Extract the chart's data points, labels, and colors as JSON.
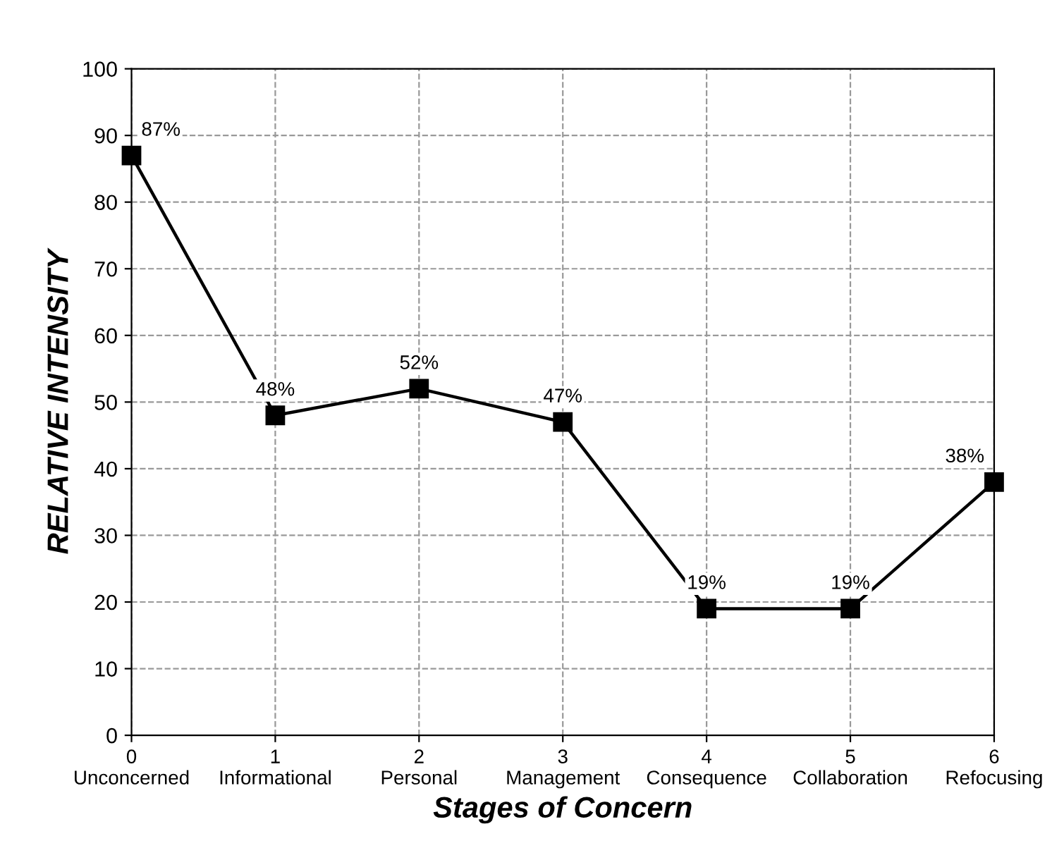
{
  "chart_data": {
    "type": "line",
    "xlabel": "Stages of Concern",
    "ylabel": "RELATIVE INTENSITY",
    "x": [
      0,
      1,
      2,
      3,
      4,
      5,
      6
    ],
    "series": [
      {
        "color": "#000000",
        "values": [
          87,
          48,
          52,
          47,
          19,
          19,
          38
        ],
        "value_labels": [
          "87%",
          "48%",
          "52%",
          "47%",
          "19%",
          "19%",
          "38%"
        ]
      }
    ],
    "xlim": [
      0,
      6
    ],
    "xticks": [
      {
        "value": 0,
        "label": "0\nUnconcerned"
      },
      {
        "value": 1,
        "label": "1\nInformational"
      },
      {
        "value": 2,
        "label": "2\nPersonal"
      },
      {
        "value": 3,
        "label": "3\nManagement"
      },
      {
        "value": 4,
        "label": "4\nConsequence"
      },
      {
        "value": 5,
        "label": "5\nCollaboration"
      },
      {
        "value": 6,
        "label": "6\nRefocusing"
      }
    ],
    "ylim": [
      0,
      100
    ],
    "yticks": [
      0,
      10,
      20,
      30,
      40,
      50,
      60,
      70,
      80,
      90,
      100
    ],
    "grid": true,
    "marker": "square",
    "line_style": "solid"
  }
}
